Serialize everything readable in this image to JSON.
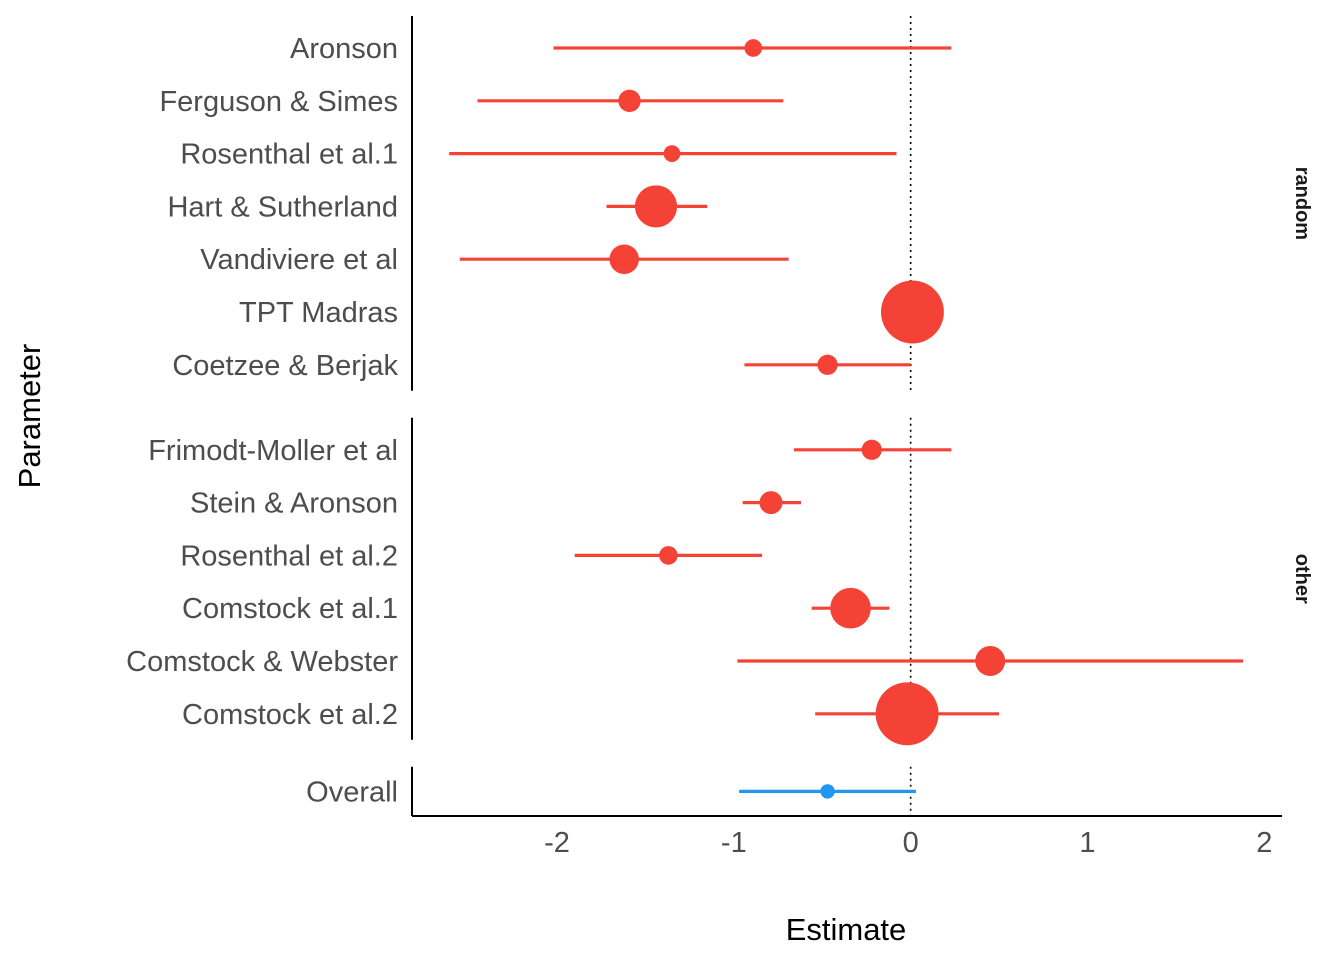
{
  "chart_data": {
    "type": "forest",
    "xlabel": "Estimate",
    "ylabel": "Parameter",
    "xlim": [
      -2.82,
      2.1
    ],
    "x_ticks": [
      -2,
      -1,
      0,
      1,
      2
    ],
    "x_tick_labels": [
      "-2",
      "-1",
      "0",
      "1",
      "2"
    ],
    "reference_line": 0,
    "grid": false,
    "colors": {
      "study": "#f44336",
      "overall": "#2196f3",
      "axis": "#000000",
      "tick_text": "#4d4d4d"
    },
    "panels": [
      {
        "name": "random",
        "studies": [
          {
            "name": "Aronson",
            "estimate": -0.89,
            "lower": -2.02,
            "upper": 0.23,
            "weight": 0.6
          },
          {
            "name": "Ferguson & Simes",
            "estimate": -1.59,
            "lower": -2.45,
            "upper": -0.72,
            "weight": 1.2
          },
          {
            "name": "Rosenthal et al.1",
            "estimate": -1.35,
            "lower": -2.61,
            "upper": -0.08,
            "weight": 0.5
          },
          {
            "name": "Hart & Sutherland",
            "estimate": -1.44,
            "lower": -1.72,
            "upper": -1.15,
            "weight": 6.0
          },
          {
            "name": "Vandiviere et al",
            "estimate": -1.62,
            "lower": -2.55,
            "upper": -0.69,
            "weight": 2.5
          },
          {
            "name": "TPT Madras",
            "estimate": 0.01,
            "lower": -0.11,
            "upper": 0.12,
            "weight": 15.0
          },
          {
            "name": "Coetzee & Berjak",
            "estimate": -0.47,
            "lower": -0.94,
            "upper": 0.0,
            "weight": 0.9
          }
        ]
      },
      {
        "name": "other",
        "studies": [
          {
            "name": "Frimodt-Moller et al",
            "estimate": -0.22,
            "lower": -0.66,
            "upper": 0.23,
            "weight": 0.9
          },
          {
            "name": "Stein & Aronson",
            "estimate": -0.79,
            "lower": -0.95,
            "upper": -0.62,
            "weight": 1.3
          },
          {
            "name": "Rosenthal et al.2",
            "estimate": -1.37,
            "lower": -1.9,
            "upper": -0.84,
            "weight": 0.7
          },
          {
            "name": "Comstock et al.1",
            "estimate": -0.34,
            "lower": -0.56,
            "upper": -0.12,
            "weight": 5.5
          },
          {
            "name": "Comstock & Webster",
            "estimate": 0.45,
            "lower": -0.98,
            "upper": 1.88,
            "weight": 2.6
          },
          {
            "name": "Comstock et al.2",
            "estimate": -0.02,
            "lower": -0.54,
            "upper": 0.5,
            "weight": 15.0
          }
        ]
      },
      {
        "name": "",
        "studies": [
          {
            "name": "Overall",
            "estimate": -0.47,
            "lower": -0.97,
            "upper": 0.03,
            "weight": 0.3,
            "is_overall": true
          }
        ]
      }
    ]
  }
}
